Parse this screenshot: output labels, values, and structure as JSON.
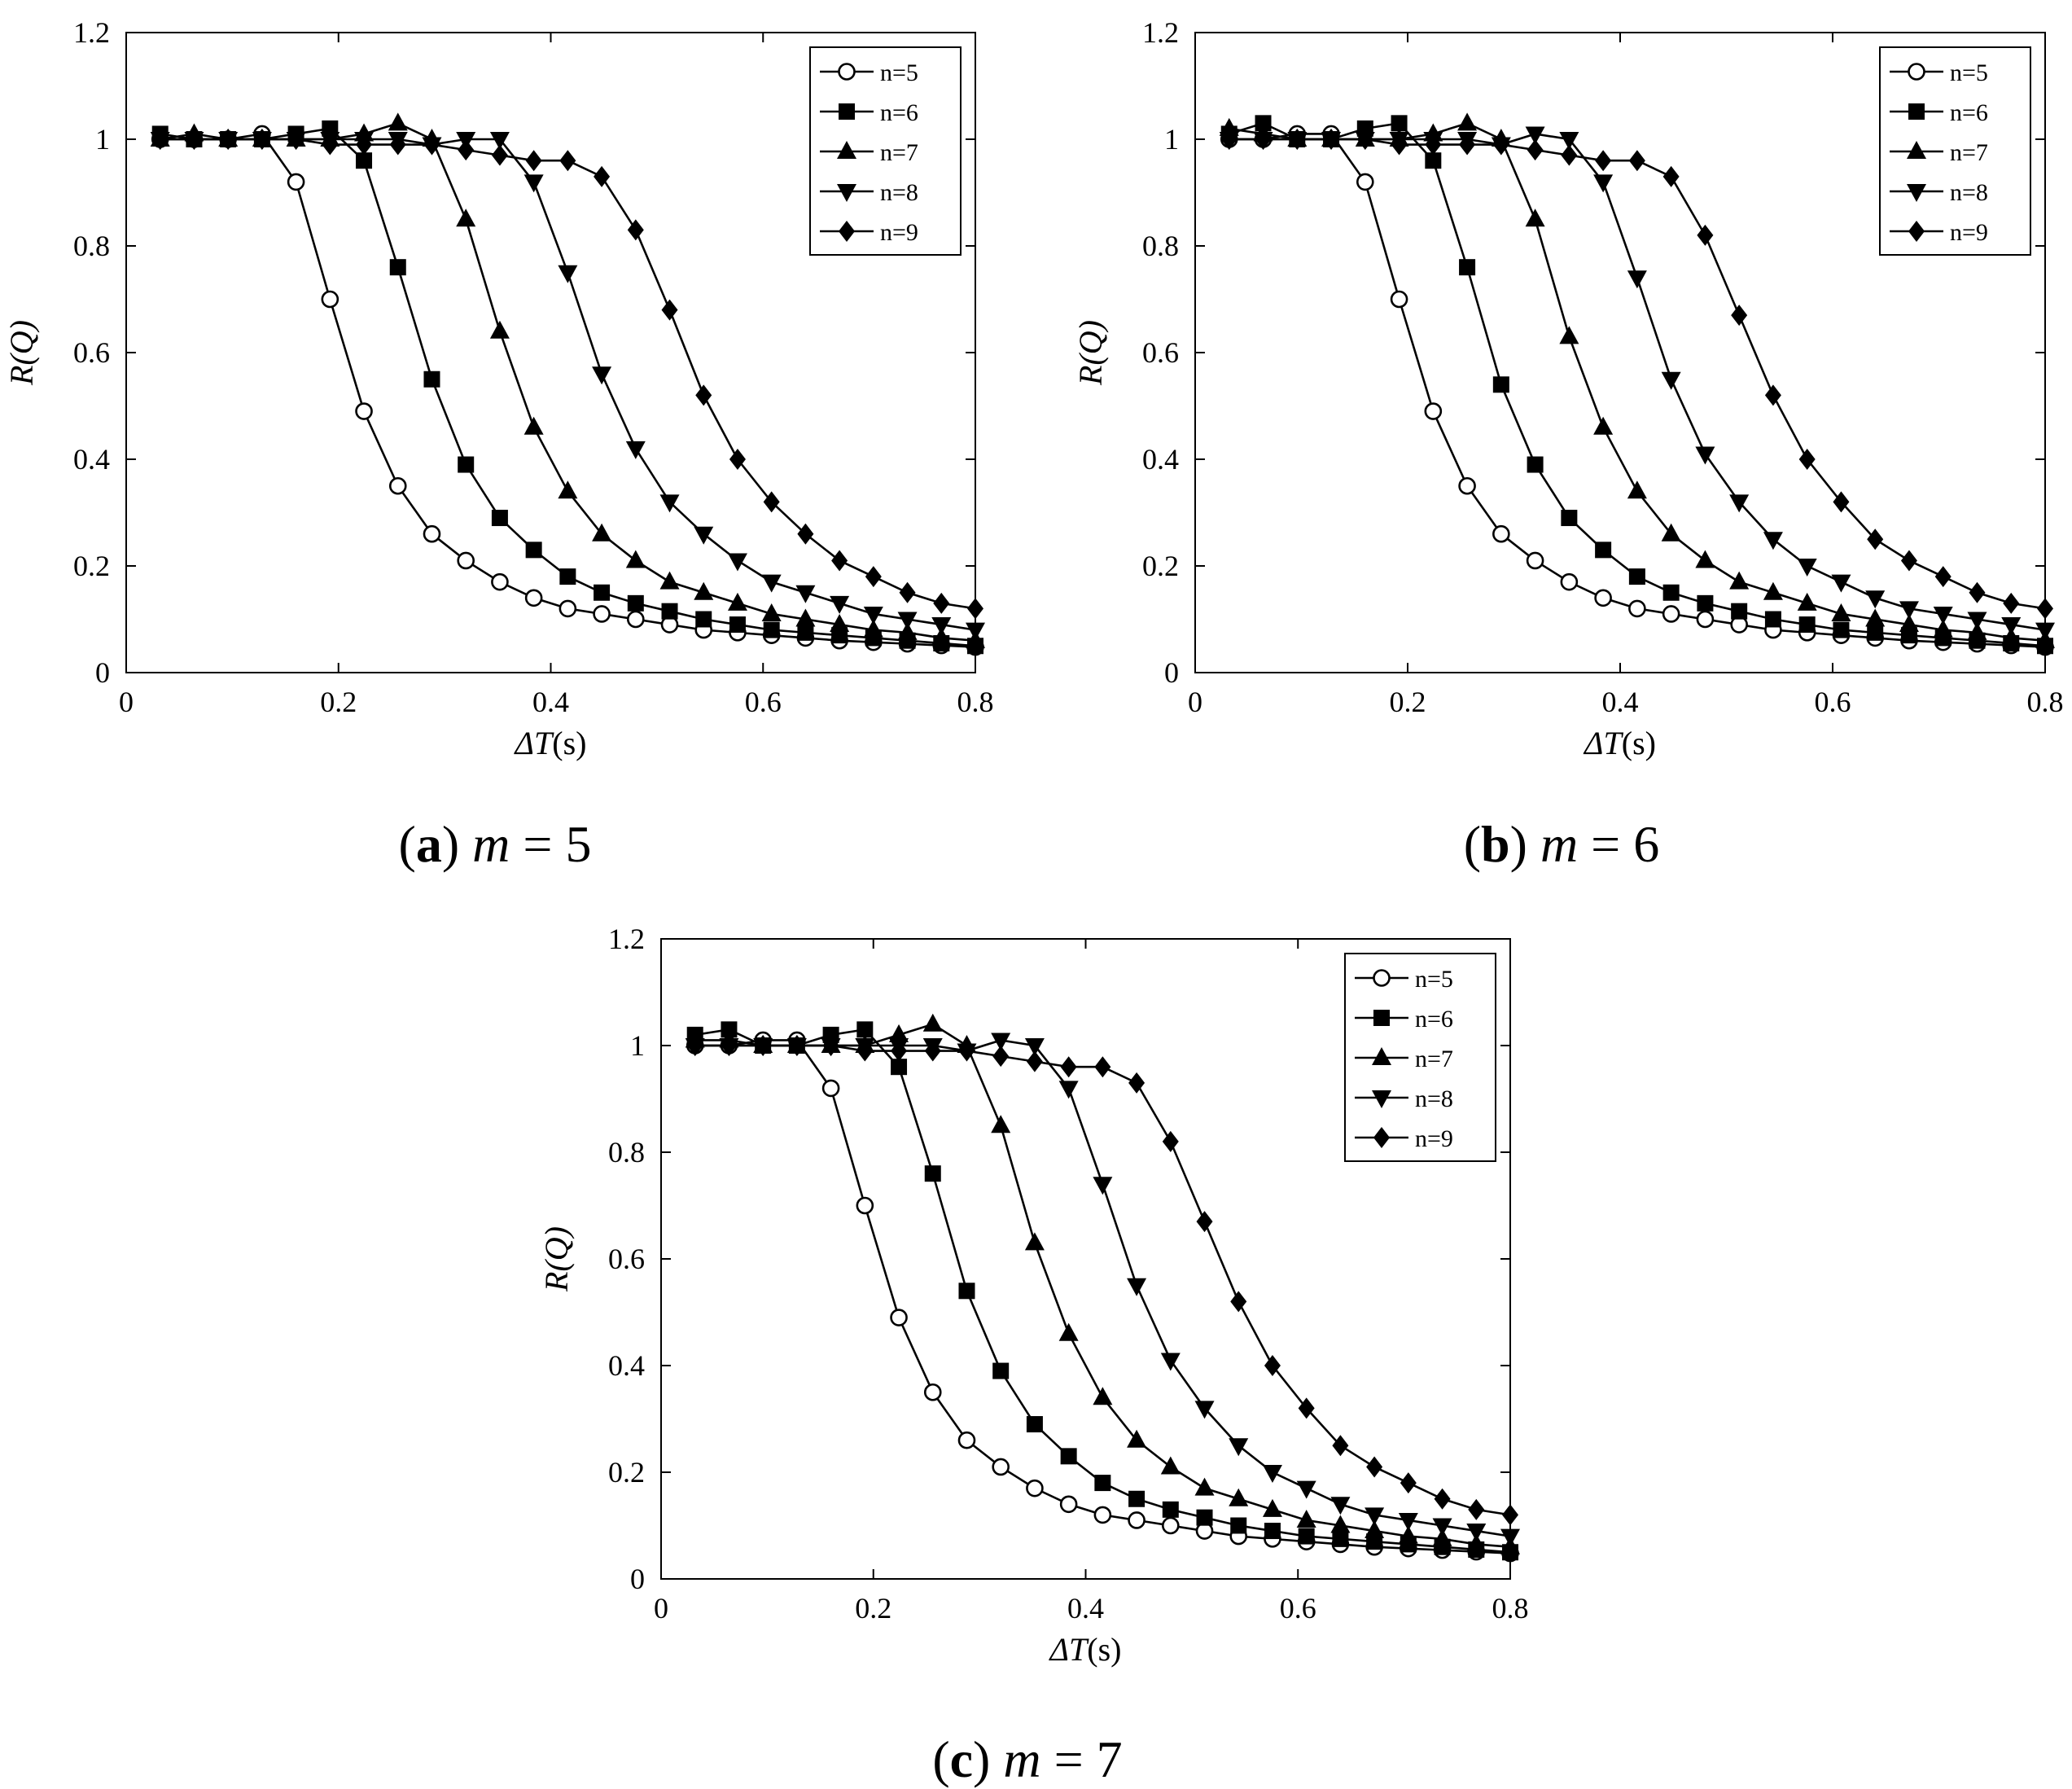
{
  "chart_data": [
    {
      "type": "line",
      "caption": {
        "letter": "(a)",
        "var": "m",
        "eq": " = 5"
      },
      "xlabel": {
        "italic": "ΔT",
        "unit": "(s)"
      },
      "ylabel": "R(Q)",
      "xlim": [
        0,
        0.8
      ],
      "ylim": [
        0,
        1.2
      ],
      "xticks": [
        "0",
        "0.2",
        "0.4",
        "0.6",
        "0.8"
      ],
      "yticks": [
        "0",
        "0.2",
        "0.4",
        "0.6",
        "0.8",
        "1",
        "1.2"
      ],
      "legend_position": "top-right",
      "x": [
        0.032,
        0.064,
        0.096,
        0.128,
        0.16,
        0.192,
        0.224,
        0.256,
        0.288,
        0.32,
        0.352,
        0.384,
        0.416,
        0.448,
        0.48,
        0.512,
        0.544,
        0.576,
        0.608,
        0.64,
        0.672,
        0.704,
        0.736,
        0.768,
        0.8
      ],
      "series": [
        {
          "name": "n=5",
          "marker": "circle-open",
          "values": [
            1.0,
            1.0,
            1.0,
            1.01,
            0.92,
            0.7,
            0.49,
            0.35,
            0.26,
            0.21,
            0.17,
            0.14,
            0.12,
            0.11,
            0.1,
            0.09,
            0.08,
            0.075,
            0.07,
            0.065,
            0.06,
            0.057,
            0.054,
            0.051,
            0.048
          ]
        },
        {
          "name": "n=6",
          "marker": "square-filled",
          "values": [
            1.01,
            1.0,
            1.0,
            1.0,
            1.01,
            1.02,
            0.96,
            0.76,
            0.55,
            0.39,
            0.29,
            0.23,
            0.18,
            0.15,
            0.13,
            0.115,
            0.1,
            0.09,
            0.08,
            0.075,
            0.07,
            0.065,
            0.06,
            0.055,
            0.05
          ]
        },
        {
          "name": "n=7",
          "marker": "triangle-up-filled",
          "values": [
            1.0,
            1.01,
            1.0,
            1.0,
            1.0,
            1.0,
            1.01,
            1.03,
            1.0,
            0.85,
            0.64,
            0.46,
            0.34,
            0.26,
            0.21,
            0.17,
            0.15,
            0.13,
            0.11,
            0.1,
            0.09,
            0.08,
            0.075,
            0.065,
            0.06
          ]
        },
        {
          "name": "n=8",
          "marker": "triangle-down-filled",
          "values": [
            1.0,
            1.0,
            1.0,
            1.0,
            1.0,
            1.0,
            1.0,
            1.0,
            0.99,
            1.0,
            1.0,
            0.92,
            0.75,
            0.56,
            0.42,
            0.32,
            0.26,
            0.21,
            0.17,
            0.15,
            0.13,
            0.11,
            0.1,
            0.09,
            0.08
          ]
        },
        {
          "name": "n=9",
          "marker": "diamond-filled",
          "values": [
            1.0,
            1.0,
            1.0,
            1.0,
            1.0,
            0.99,
            0.99,
            0.99,
            0.99,
            0.98,
            0.97,
            0.96,
            0.96,
            0.93,
            0.83,
            0.68,
            0.52,
            0.4,
            0.32,
            0.26,
            0.21,
            0.18,
            0.15,
            0.13,
            0.12
          ]
        }
      ]
    },
    {
      "type": "line",
      "caption": {
        "letter": "(b)",
        "var": "m",
        "eq": " = 6"
      },
      "xlabel": {
        "italic": "ΔT",
        "unit": "(s)"
      },
      "ylabel": "R(Q)",
      "xlim": [
        0,
        0.8
      ],
      "ylim": [
        0,
        1.2
      ],
      "xticks": [
        "0",
        "0.2",
        "0.4",
        "0.6",
        "0.8"
      ],
      "yticks": [
        "0",
        "0.2",
        "0.4",
        "0.6",
        "0.8",
        "1",
        "1.2"
      ],
      "legend_position": "top-right",
      "x": [
        0.032,
        0.064,
        0.096,
        0.128,
        0.16,
        0.192,
        0.224,
        0.256,
        0.288,
        0.32,
        0.352,
        0.384,
        0.416,
        0.448,
        0.48,
        0.512,
        0.544,
        0.576,
        0.608,
        0.64,
        0.672,
        0.704,
        0.736,
        0.768,
        0.8
      ],
      "series": [
        {
          "name": "n=5",
          "marker": "circle-open",
          "values": [
            1.0,
            1.0,
            1.01,
            1.01,
            0.92,
            0.7,
            0.49,
            0.35,
            0.26,
            0.21,
            0.17,
            0.14,
            0.12,
            0.11,
            0.1,
            0.09,
            0.08,
            0.075,
            0.07,
            0.065,
            0.06,
            0.057,
            0.054,
            0.051,
            0.048
          ]
        },
        {
          "name": "n=6",
          "marker": "square-filled",
          "values": [
            1.01,
            1.03,
            1.0,
            1.0,
            1.02,
            1.03,
            0.96,
            0.76,
            0.54,
            0.39,
            0.29,
            0.23,
            0.18,
            0.15,
            0.13,
            0.115,
            0.1,
            0.09,
            0.08,
            0.075,
            0.07,
            0.065,
            0.06,
            0.055,
            0.05
          ]
        },
        {
          "name": "n=7",
          "marker": "triangle-up-filled",
          "values": [
            1.02,
            1.01,
            1.0,
            1.0,
            1.0,
            1.0,
            1.01,
            1.03,
            1.0,
            0.85,
            0.63,
            0.46,
            0.34,
            0.26,
            0.21,
            0.17,
            0.15,
            0.13,
            0.11,
            0.1,
            0.09,
            0.08,
            0.075,
            0.065,
            0.06
          ]
        },
        {
          "name": "n=8",
          "marker": "triangle-down-filled",
          "values": [
            1.0,
            1.0,
            1.0,
            1.0,
            1.0,
            1.0,
            1.0,
            1.0,
            0.99,
            1.01,
            1.0,
            0.92,
            0.74,
            0.55,
            0.41,
            0.32,
            0.25,
            0.2,
            0.17,
            0.14,
            0.12,
            0.11,
            0.1,
            0.09,
            0.08
          ]
        },
        {
          "name": "n=9",
          "marker": "diamond-filled",
          "values": [
            1.0,
            1.0,
            1.0,
            1.0,
            1.0,
            0.99,
            0.99,
            0.99,
            0.99,
            0.98,
            0.97,
            0.96,
            0.96,
            0.93,
            0.82,
            0.67,
            0.52,
            0.4,
            0.32,
            0.25,
            0.21,
            0.18,
            0.15,
            0.13,
            0.12
          ]
        }
      ]
    },
    {
      "type": "line",
      "caption": {
        "letter": "(c)",
        "var": "m",
        "eq": " = 7"
      },
      "xlabel": {
        "italic": "ΔT",
        "unit": "(s)"
      },
      "ylabel": "R(Q)",
      "xlim": [
        0,
        0.8
      ],
      "ylim": [
        0,
        1.2
      ],
      "xticks": [
        "0",
        "0.2",
        "0.4",
        "0.6",
        "0.8"
      ],
      "yticks": [
        "0",
        "0.2",
        "0.4",
        "0.6",
        "0.8",
        "1",
        "1.2"
      ],
      "legend_position": "top-right",
      "x": [
        0.032,
        0.064,
        0.096,
        0.128,
        0.16,
        0.192,
        0.224,
        0.256,
        0.288,
        0.32,
        0.352,
        0.384,
        0.416,
        0.448,
        0.48,
        0.512,
        0.544,
        0.576,
        0.608,
        0.64,
        0.672,
        0.704,
        0.736,
        0.768,
        0.8
      ],
      "series": [
        {
          "name": "n=5",
          "marker": "circle-open",
          "values": [
            1.0,
            1.0,
            1.01,
            1.01,
            0.92,
            0.7,
            0.49,
            0.35,
            0.26,
            0.21,
            0.17,
            0.14,
            0.12,
            0.11,
            0.1,
            0.09,
            0.08,
            0.075,
            0.07,
            0.065,
            0.06,
            0.057,
            0.054,
            0.051,
            0.048
          ]
        },
        {
          "name": "n=6",
          "marker": "square-filled",
          "values": [
            1.02,
            1.03,
            1.0,
            1.0,
            1.02,
            1.03,
            0.96,
            0.76,
            0.54,
            0.39,
            0.29,
            0.23,
            0.18,
            0.15,
            0.13,
            0.115,
            0.1,
            0.09,
            0.08,
            0.075,
            0.07,
            0.065,
            0.06,
            0.055,
            0.05
          ]
        },
        {
          "name": "n=7",
          "marker": "triangle-up-filled",
          "values": [
            1.01,
            1.01,
            1.0,
            1.0,
            1.0,
            1.0,
            1.02,
            1.04,
            1.0,
            0.85,
            0.63,
            0.46,
            0.34,
            0.26,
            0.21,
            0.17,
            0.15,
            0.13,
            0.11,
            0.1,
            0.09,
            0.08,
            0.075,
            0.065,
            0.06
          ]
        },
        {
          "name": "n=8",
          "marker": "triangle-down-filled",
          "values": [
            1.0,
            1.0,
            1.0,
            1.0,
            1.0,
            1.0,
            1.0,
            1.0,
            0.99,
            1.01,
            1.0,
            0.92,
            0.74,
            0.55,
            0.41,
            0.32,
            0.25,
            0.2,
            0.17,
            0.14,
            0.12,
            0.11,
            0.1,
            0.09,
            0.08
          ]
        },
        {
          "name": "n=9",
          "marker": "diamond-filled",
          "values": [
            1.0,
            1.0,
            1.0,
            1.0,
            1.0,
            0.99,
            0.99,
            0.99,
            0.99,
            0.98,
            0.97,
            0.96,
            0.96,
            0.93,
            0.82,
            0.67,
            0.52,
            0.4,
            0.32,
            0.25,
            0.21,
            0.18,
            0.15,
            0.13,
            0.12
          ]
        }
      ]
    }
  ]
}
